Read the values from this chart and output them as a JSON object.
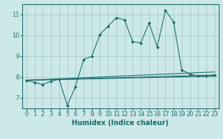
{
  "xlabel": "Humidex (Indice chaleur)",
  "background_color": "#cce8e8",
  "grid_color": "#aacccc",
  "line_color": "#1a6b6b",
  "xlim": [
    -0.5,
    23.5
  ],
  "ylim": [
    6.5,
    11.5
  ],
  "yticks": [
    7,
    8,
    9,
    10,
    11
  ],
  "xticks": [
    0,
    1,
    2,
    3,
    4,
    5,
    6,
    7,
    8,
    9,
    10,
    11,
    12,
    13,
    14,
    15,
    16,
    17,
    18,
    19,
    20,
    21,
    22,
    23
  ],
  "series": [
    {
      "x": [
        0,
        1,
        2,
        3,
        4,
        5,
        6,
        7,
        8,
        9,
        10,
        11,
        12,
        13,
        14,
        15,
        16,
        17,
        18,
        19,
        20,
        21,
        22,
        23
      ],
      "y": [
        7.85,
        7.75,
        7.65,
        7.8,
        7.9,
        6.65,
        7.55,
        8.85,
        9.0,
        10.05,
        10.45,
        10.85,
        10.75,
        9.7,
        9.65,
        10.6,
        9.45,
        11.2,
        10.65,
        8.35,
        8.15,
        8.05,
        8.05,
        8.1
      ]
    },
    {
      "x": [
        0,
        23
      ],
      "y": [
        7.85,
        8.25
      ]
    },
    {
      "x": [
        0,
        23
      ],
      "y": [
        7.85,
        8.1
      ]
    },
    {
      "x": [
        0,
        23
      ],
      "y": [
        7.85,
        8.05
      ]
    }
  ],
  "marker": "D",
  "markersize": 2.0,
  "linewidth": 0.8,
  "xlabel_fontsize": 7,
  "tick_fontsize": 6
}
